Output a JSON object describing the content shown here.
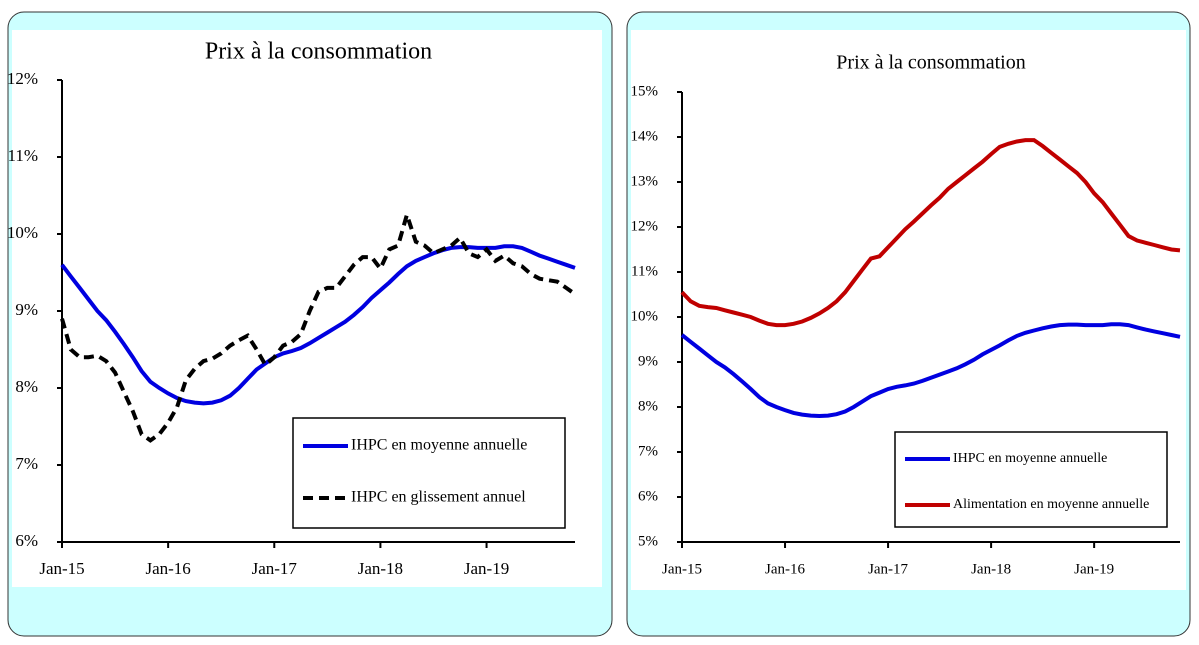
{
  "chart_data": [
    {
      "type": "line",
      "title": "Prix à la consommation",
      "categories": [
        "Jan-15",
        null,
        null,
        null,
        null,
        null,
        null,
        null,
        null,
        null,
        null,
        null,
        "Jan-16",
        null,
        null,
        null,
        null,
        null,
        null,
        null,
        null,
        null,
        null,
        null,
        "Jan-17",
        null,
        null,
        null,
        null,
        null,
        null,
        null,
        null,
        null,
        null,
        null,
        "Jan-18",
        null,
        null,
        null,
        null,
        null,
        null,
        null,
        null,
        null,
        null,
        null,
        "Jan-19",
        null,
        null,
        null,
        null,
        null,
        null,
        null,
        null,
        null,
        null
      ],
      "series": [
        {
          "name": "IHPC en moyenne annuelle",
          "color": "#0000e0",
          "dashed": false,
          "values": [
            9.6,
            9.45,
            9.3,
            9.15,
            9.0,
            8.88,
            8.73,
            8.57,
            8.4,
            8.22,
            8.08,
            8.0,
            7.93,
            7.87,
            7.83,
            7.81,
            7.8,
            7.81,
            7.84,
            7.9,
            8.0,
            8.12,
            8.24,
            8.32,
            8.4,
            8.45,
            8.48,
            8.52,
            8.58,
            8.65,
            8.72,
            8.79,
            8.86,
            8.95,
            9.05,
            9.17,
            9.27,
            9.37,
            9.48,
            9.58,
            9.65,
            9.7,
            9.75,
            9.79,
            9.82,
            9.83,
            9.83,
            9.82,
            9.82,
            9.82,
            9.84,
            9.84,
            9.82,
            9.77,
            9.72,
            9.68,
            9.64,
            9.6,
            9.56
          ]
        },
        {
          "name": "IHPC en glissement annuel",
          "color": "#000000",
          "dashed": true,
          "values": [
            8.9,
            8.5,
            8.4,
            8.4,
            8.42,
            8.35,
            8.2,
            7.95,
            7.7,
            7.4,
            7.32,
            7.4,
            7.55,
            7.75,
            8.1,
            8.25,
            8.35,
            8.38,
            8.45,
            8.55,
            8.62,
            8.68,
            8.5,
            8.3,
            8.4,
            8.55,
            8.6,
            8.7,
            9.0,
            9.25,
            9.3,
            9.3,
            9.45,
            9.6,
            9.7,
            9.7,
            9.55,
            9.8,
            9.85,
            10.25,
            9.9,
            9.85,
            9.75,
            9.8,
            9.85,
            9.95,
            9.75,
            9.7,
            9.8,
            9.65,
            9.72,
            9.62,
            9.58,
            9.48,
            9.42,
            9.4,
            9.38,
            9.3,
            9.22
          ]
        }
      ],
      "ylim": [
        6,
        12
      ],
      "yticks": [
        {
          "value": 6,
          "label": "6%"
        },
        {
          "value": 7,
          "label": "7%"
        },
        {
          "value": 8,
          "label": "8%"
        },
        {
          "value": 9,
          "label": "9%"
        },
        {
          "value": 10,
          "label": "10%"
        },
        {
          "value": 11,
          "label": "11%"
        },
        {
          "value": 12,
          "label": "12%"
        }
      ],
      "legend": "lower right",
      "grid": false
    },
    {
      "type": "line",
      "title": "Prix à la consommation",
      "categories": [
        "Jan-15",
        null,
        null,
        null,
        null,
        null,
        null,
        null,
        null,
        null,
        null,
        null,
        "Jan-16",
        null,
        null,
        null,
        null,
        null,
        null,
        null,
        null,
        null,
        null,
        null,
        "Jan-17",
        null,
        null,
        null,
        null,
        null,
        null,
        null,
        null,
        null,
        null,
        null,
        "Jan-18",
        null,
        null,
        null,
        null,
        null,
        null,
        null,
        null,
        null,
        null,
        null,
        "Jan-19",
        null,
        null,
        null,
        null,
        null,
        null,
        null,
        null,
        null,
        null
      ],
      "series": [
        {
          "name": "IHPC en moyenne annuelle",
          "color": "#0000e0",
          "dashed": false,
          "values": [
            9.6,
            9.45,
            9.3,
            9.15,
            9.0,
            8.88,
            8.73,
            8.57,
            8.4,
            8.22,
            8.08,
            8.0,
            7.93,
            7.87,
            7.83,
            7.81,
            7.8,
            7.81,
            7.84,
            7.9,
            8.0,
            8.12,
            8.24,
            8.32,
            8.4,
            8.45,
            8.48,
            8.52,
            8.58,
            8.65,
            8.72,
            8.79,
            8.86,
            8.95,
            9.05,
            9.17,
            9.27,
            9.37,
            9.48,
            9.58,
            9.65,
            9.7,
            9.75,
            9.79,
            9.82,
            9.83,
            9.83,
            9.82,
            9.82,
            9.82,
            9.84,
            9.84,
            9.82,
            9.77,
            9.72,
            9.68,
            9.64,
            9.6,
            9.56
          ]
        },
        {
          "name": "Alimentation en moyenne annuelle",
          "color": "#c00000",
          "dashed": false,
          "values": [
            10.55,
            10.35,
            10.25,
            10.22,
            10.2,
            10.15,
            10.1,
            10.05,
            10.0,
            9.92,
            9.85,
            9.82,
            9.82,
            9.85,
            9.9,
            9.98,
            10.08,
            10.2,
            10.35,
            10.55,
            10.8,
            11.05,
            11.3,
            11.35,
            11.55,
            11.75,
            11.95,
            12.12,
            12.3,
            12.48,
            12.65,
            12.85,
            13.0,
            13.15,
            13.3,
            13.45,
            13.62,
            13.78,
            13.85,
            13.9,
            13.93,
            13.93,
            13.8,
            13.65,
            13.5,
            13.35,
            13.2,
            13.0,
            12.75,
            12.55,
            12.3,
            12.05,
            11.8,
            11.7,
            11.65,
            11.6,
            11.55,
            11.5,
            11.48
          ]
        }
      ],
      "ylim": [
        5,
        15
      ],
      "yticks": [
        {
          "value": 5,
          "label": "5%"
        },
        {
          "value": 6,
          "label": "6%"
        },
        {
          "value": 7,
          "label": "7%"
        },
        {
          "value": 8,
          "label": "8%"
        },
        {
          "value": 9,
          "label": "9%"
        },
        {
          "value": 10,
          "label": "10%"
        },
        {
          "value": 11,
          "label": "11%"
        },
        {
          "value": 12,
          "label": "12%"
        },
        {
          "value": 13,
          "label": "13%"
        },
        {
          "value": 14,
          "label": "14%"
        },
        {
          "value": 15,
          "label": "15%"
        }
      ],
      "legend": "lower right",
      "grid": false
    }
  ]
}
